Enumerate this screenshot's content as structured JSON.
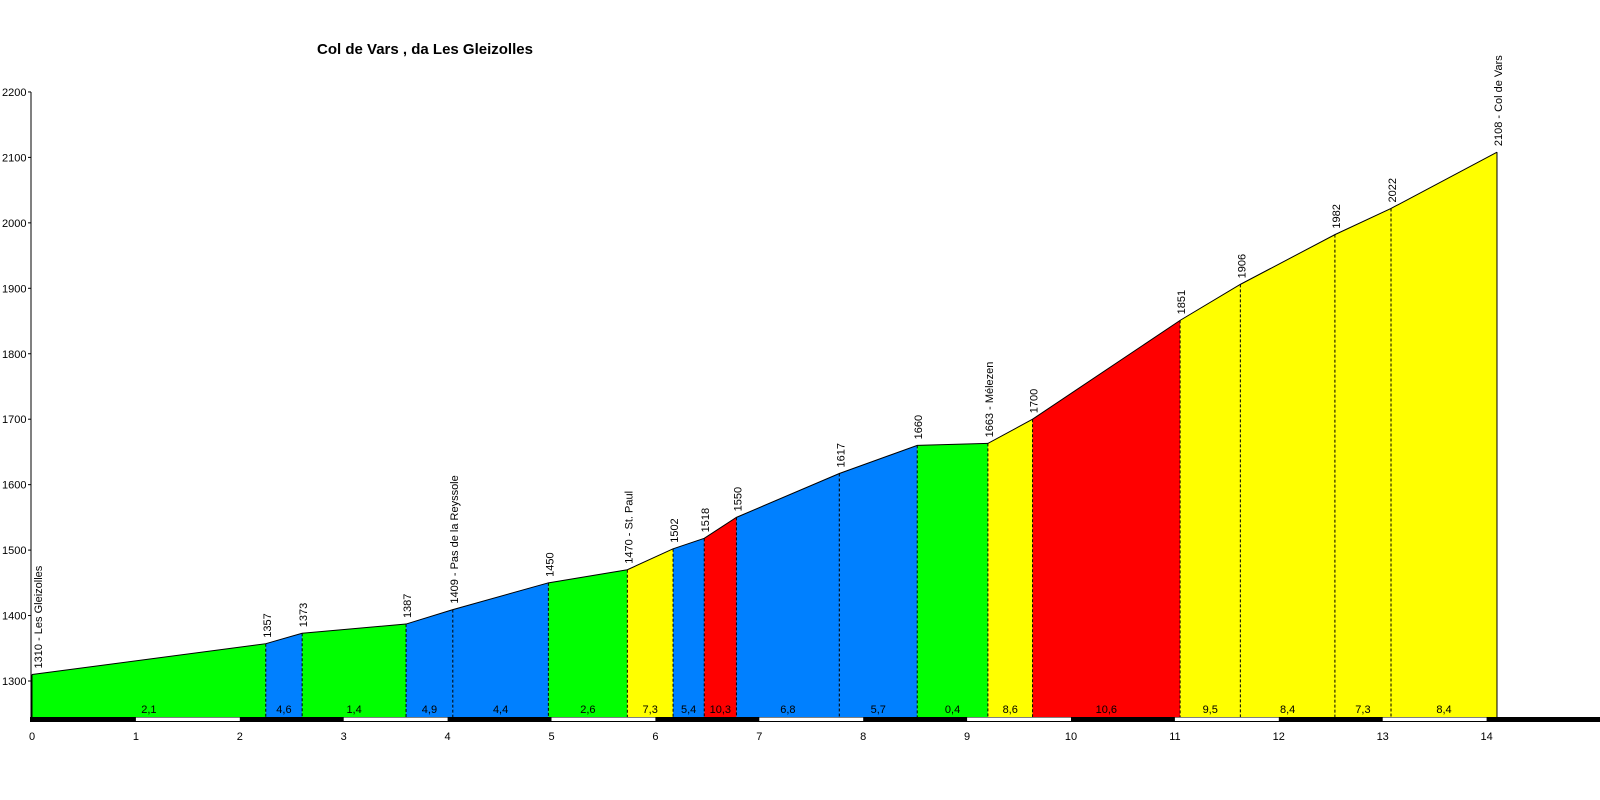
{
  "chart_data": {
    "type": "area",
    "title": "Col de Vars , da Les Gleizolles",
    "xlabel": "",
    "ylabel": "",
    "xlim": [
      0,
      15
    ],
    "ylim": [
      1240,
      2200
    ],
    "xticks": [
      0,
      1,
      2,
      3,
      4,
      5,
      6,
      7,
      8,
      9,
      10,
      11,
      12,
      13,
      14
    ],
    "yticks": [
      1300,
      1400,
      1500,
      1600,
      1700,
      1800,
      1900,
      2000,
      2100,
      2200
    ],
    "profile": [
      {
        "x": 0.0,
        "y": 1310,
        "label": "1310 - Les Gleizolles"
      },
      {
        "x": 2.25,
        "y": 1357,
        "label": "1357"
      },
      {
        "x": 2.6,
        "y": 1373,
        "label": "1373"
      },
      {
        "x": 3.6,
        "y": 1387,
        "label": "1387"
      },
      {
        "x": 4.05,
        "y": 1409,
        "label": "1409 - Pas de la Reyssole"
      },
      {
        "x": 4.97,
        "y": 1450,
        "label": "1450"
      },
      {
        "x": 5.73,
        "y": 1470,
        "label": "1470 - St. Paul"
      },
      {
        "x": 6.17,
        "y": 1502,
        "label": "1502"
      },
      {
        "x": 6.47,
        "y": 1518,
        "label": "1518"
      },
      {
        "x": 6.78,
        "y": 1550,
        "label": "1550"
      },
      {
        "x": 7.77,
        "y": 1617,
        "label": "1617"
      },
      {
        "x": 8.52,
        "y": 1660,
        "label": "1660"
      },
      {
        "x": 9.2,
        "y": 1663,
        "label": "1663 - Mélezen"
      },
      {
        "x": 9.63,
        "y": 1700,
        "label": "1700"
      },
      {
        "x": 11.05,
        "y": 1851,
        "label": "1851"
      },
      {
        "x": 11.63,
        "y": 1906,
        "label": "1906"
      },
      {
        "x": 12.54,
        "y": 1982,
        "label": "1982"
      },
      {
        "x": 13.08,
        "y": 2022,
        "label": "2022"
      },
      {
        "x": 14.1,
        "y": 2108,
        "label": "2108 - Col de Vars"
      }
    ],
    "segments": [
      {
        "gradient": "2,1",
        "color": "#00ff00"
      },
      {
        "gradient": "4,6",
        "color": "#0080ff"
      },
      {
        "gradient": "1,4",
        "color": "#00ff00"
      },
      {
        "gradient": "4,9",
        "color": "#0080ff"
      },
      {
        "gradient": "4,4",
        "color": "#0080ff"
      },
      {
        "gradient": "2,6",
        "color": "#00ff00"
      },
      {
        "gradient": "7,3",
        "color": "#ffff00"
      },
      {
        "gradient": "5,4",
        "color": "#0080ff"
      },
      {
        "gradient": "10,3",
        "color": "#ff0000"
      },
      {
        "gradient": "6,8",
        "color": "#0080ff"
      },
      {
        "gradient": "5,7",
        "color": "#0080ff"
      },
      {
        "gradient": "0,4",
        "color": "#00ff00"
      },
      {
        "gradient": "8,6",
        "color": "#ffff00"
      },
      {
        "gradient": "10,6",
        "color": "#ff0000"
      },
      {
        "gradient": "9,5",
        "color": "#ffff00"
      },
      {
        "gradient": "8,4",
        "color": "#ffff00"
      },
      {
        "gradient": "7,3",
        "color": "#ffff00"
      },
      {
        "gradient": "8,4",
        "color": "#ffff00"
      }
    ],
    "grid": false
  }
}
